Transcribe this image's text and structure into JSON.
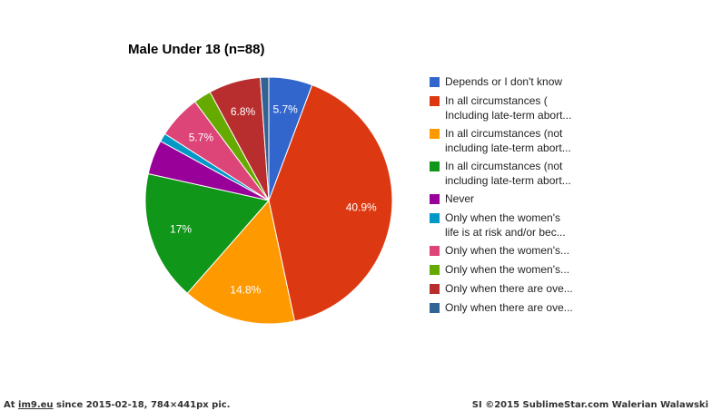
{
  "chart_data": {
    "type": "pie",
    "title": "Male Under 18 (n=88)",
    "slices": [
      {
        "label": "Depends or I don't know",
        "legend_lines": [
          "Depends or I don't know"
        ],
        "value": 5.7,
        "data_label": "5.7%",
        "color": "#3366cc"
      },
      {
        "label": "In all circumstances ( Including late-term abort...",
        "legend_lines": [
          "In all circumstances (",
          "Including late-term abort..."
        ],
        "value": 40.9,
        "data_label": "40.9%",
        "color": "#dc3912"
      },
      {
        "label": "In all circumstances (not including late-term abort...",
        "legend_lines": [
          "In all circumstances (not",
          "including late-term abort..."
        ],
        "value": 14.8,
        "data_label": "14.8%",
        "color": "#ff9900"
      },
      {
        "label": "In all circumstances (not including late-term abort...",
        "legend_lines": [
          "In all circumstances (not",
          "including late-term abort..."
        ],
        "value": 17.0,
        "data_label": "17%",
        "color": "#109618"
      },
      {
        "label": "Never",
        "legend_lines": [
          "Never"
        ],
        "value": 4.5,
        "data_label": "",
        "color": "#990099"
      },
      {
        "label": "Only when the women's life is at risk and/or bec...",
        "legend_lines": [
          "Only when the women's",
          "life is at risk and/or bec..."
        ],
        "value": 1.1,
        "data_label": "",
        "color": "#0099c6"
      },
      {
        "label": "Only when the women's...",
        "legend_lines": [
          "Only when the women's..."
        ],
        "value": 5.7,
        "data_label": "5.7%",
        "color": "#dd4477"
      },
      {
        "label": "Only when the women's...",
        "legend_lines": [
          "Only when the women's..."
        ],
        "value": 2.3,
        "data_label": "",
        "color": "#66aa00"
      },
      {
        "label": "Only when there are ove...",
        "legend_lines": [
          "Only when there are ove..."
        ],
        "value": 6.8,
        "data_label": "6.8%",
        "color": "#b82e2e"
      },
      {
        "label": "Only when there are ove...",
        "legend_lines": [
          "Only when there are ove..."
        ],
        "value": 1.1,
        "data_label": "",
        "color": "#316395"
      }
    ],
    "legend_position": "right",
    "start_angle_deg": 0,
    "direction": "clockwise"
  },
  "footer": {
    "left_prefix": "At ",
    "left_link": "im9.eu",
    "left_suffix": " since 2015-02-18, 784×441px pic.",
    "right": "SI ©2015 SublimeStar.com Walerian Walawski"
  }
}
